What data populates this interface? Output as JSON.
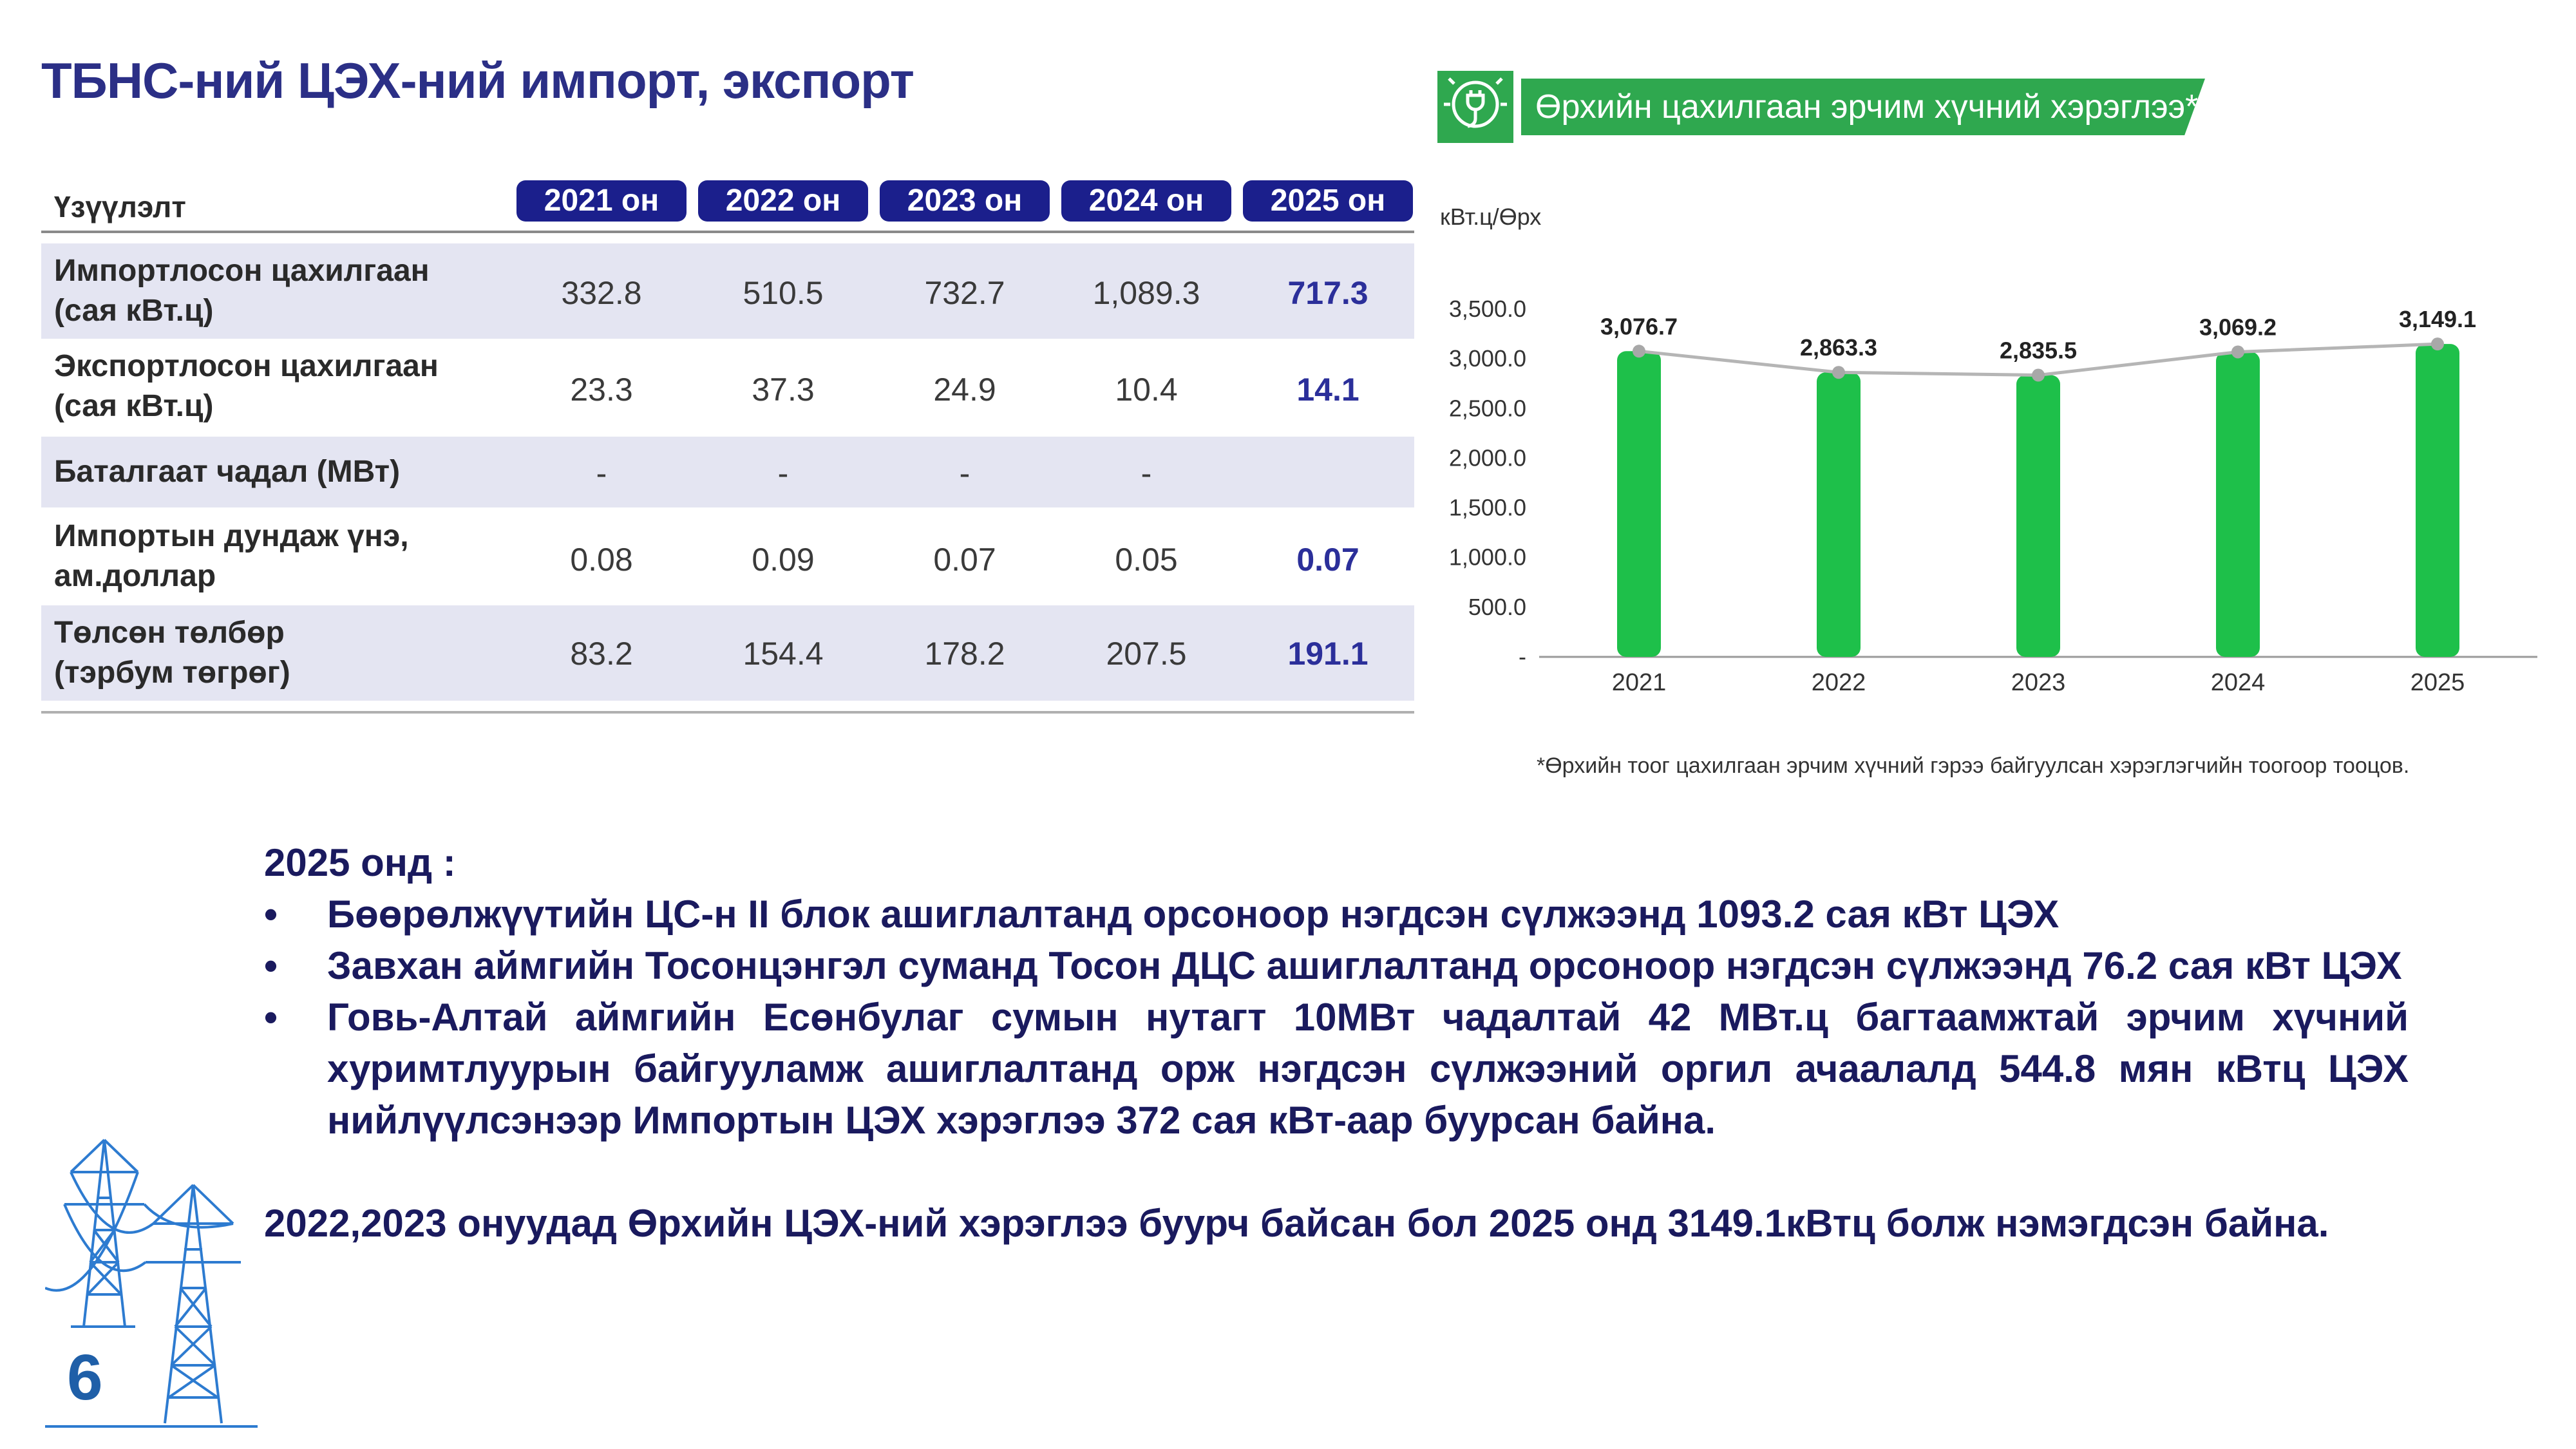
{
  "title": "ТБНС-ний ЦЭХ-ний импорт, экспорт",
  "table": {
    "header_label": "Үзүүлэлт",
    "years": [
      "2021 он",
      "2022 он",
      "2023 он",
      "2024 он",
      "2025 он"
    ],
    "rows": [
      {
        "label_line1": "Импортлосон цахилгаан",
        "label_line2": "(сая кВт.ц)",
        "values": [
          "332.8",
          "510.5",
          "732.7",
          "1,089.3",
          "717.3"
        ]
      },
      {
        "label_line1": "Экспортлосон цахилгаан",
        "label_line2": "(сая кВт.ц)",
        "values": [
          "23.3",
          "37.3",
          "24.9",
          "10.4",
          "14.1"
        ]
      },
      {
        "label_line1": "Баталгаат чадал (МВт)",
        "label_line2": "",
        "values": [
          "-",
          "-",
          "-",
          "-",
          ""
        ]
      },
      {
        "label_line1": "Импортын дундаж үнэ,",
        "label_line2": "ам.доллар",
        "values": [
          "0.08",
          "0.09",
          "0.07",
          "0.05",
          "0.07"
        ]
      },
      {
        "label_line1": "Төлсөн төлбөр",
        "label_line2": "(тэрбум төгрөг)",
        "values": [
          "83.2",
          "154.4",
          "178.2",
          "207.5",
          "191.1"
        ]
      }
    ]
  },
  "chart_header": {
    "banner": "Өрхийн цахилгаан эрчим хүчний хэрэглээ*",
    "unit": "кВт.ц/Өрх",
    "icon": "plug-bulb-icon"
  },
  "chart_data": {
    "type": "bar",
    "categories": [
      "2021",
      "2022",
      "2023",
      "2024",
      "2025"
    ],
    "values": [
      3076.7,
      2863.3,
      2835.5,
      3069.2,
      3149.1
    ],
    "value_labels": [
      "3,076.7",
      "2,863.3",
      "2,835.5",
      "3,069.2",
      "3,149.1"
    ],
    "overlay_line": true,
    "y_ticks": [
      "-",
      "500.0",
      "1,000.0",
      "1,500.0",
      "2,000.0",
      "2,500.0",
      "3,000.0",
      "3,500.0"
    ],
    "ylim": [
      0,
      3500
    ],
    "bar_color": "#1ec04a",
    "line_color": "#b5b5b5",
    "grid": false
  },
  "footnote": "*Өрхийн тоог цахилгаан эрчим хүчний гэрээ байгуулсан хэрэглэгчийн тоогоор тооцов.",
  "body": {
    "intro": "2025 онд :",
    "bullets": [
      "Бөөрөлжүүтийн ЦС-н II блок ашиглалтанд орсоноор нэгдсэн сүлжээнд 1093.2 сая кВт ЦЭХ",
      "Завхан аймгийн Тосонцэнгэл суманд Тосон ДЦС ашиглалтанд орсоноор нэгдсэн сүлжээнд  76.2 сая кВт ЦЭХ",
      "Говь-Алтай аймгийн Есөнбулаг сумын нутагт 10МВт чадалтай  42 МВт.ц багтаамжтай эрчим хүчний хуримтлуурын байгууламж ашиглалтанд орж нэгдсэн сүлжээний оргил ачаалалд 544.8 мян кВтц ЦЭХ нийлүүлсэнээр Импортын ЦЭХ хэрэглээ 372 сая кВт-аар буурсан байна."
    ],
    "bullet_symbol": "•",
    "closing": "2022,2023 онуудад Өрхийн ЦЭХ-ний хэрэглээ буурч байсан бол 2025 онд 3149.1кВтц болж нэмэгдсэн байна."
  },
  "page_number": "6",
  "colors": {
    "title": "#2b2f86",
    "pill": "#1b1f8c",
    "green": "#2fa84f",
    "body": "#1a1a5e",
    "row_shade": "#e4e5f2"
  }
}
